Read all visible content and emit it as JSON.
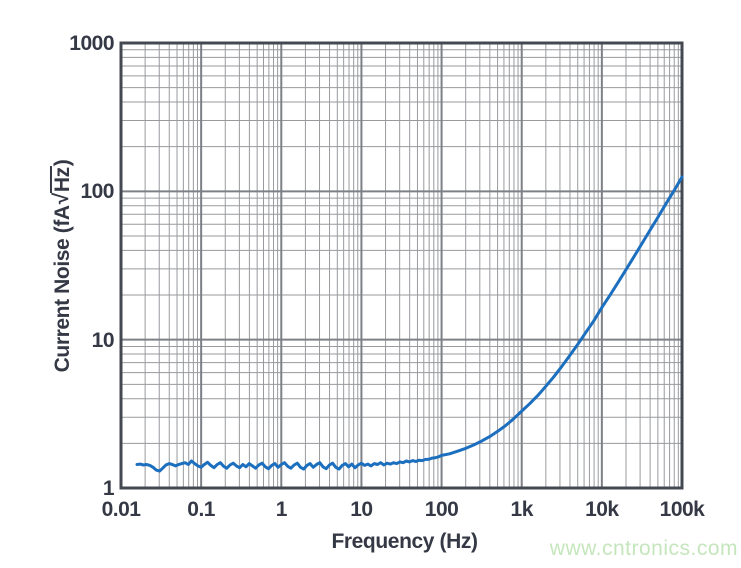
{
  "colors": {
    "text": "#343945",
    "plot_border": "#434851",
    "grid_major": "#7d8086",
    "grid_minor": "#989a9e",
    "series_blue": "#1c6fbe",
    "watermark_green": "#c5e6bc",
    "background": "#ffffff"
  },
  "watermark": {
    "text": "www.cntronics.com"
  },
  "chart_data": {
    "type": "line",
    "title": "",
    "xlabel": "Frequency (Hz)",
    "ylabel": "Current Noise (fA√Hz)",
    "ylabel_parts": {
      "prefix": "Current Noise (fA",
      "radical": "√",
      "radicand": "Hz",
      "suffix": ")"
    },
    "x_scale": "log",
    "y_scale": "log",
    "xlim": [
      0.01,
      100000
    ],
    "ylim": [
      1,
      1000
    ],
    "grid": "log major+minor, both axes",
    "legend": "none",
    "x_ticks": [
      {
        "log": -2,
        "label": "0.01"
      },
      {
        "log": -1,
        "label": "0.1"
      },
      {
        "log": 0,
        "label": "1"
      },
      {
        "log": 1,
        "label": "10"
      },
      {
        "log": 2,
        "label": "100"
      },
      {
        "log": 3,
        "label": "1k"
      },
      {
        "log": 4,
        "label": "10k"
      },
      {
        "log": 5,
        "label": "100k"
      }
    ],
    "y_ticks": [
      {
        "log": 0,
        "label": "1"
      },
      {
        "log": 1,
        "label": "10"
      },
      {
        "log": 2,
        "label": "100"
      },
      {
        "log": 3,
        "label": "1000"
      }
    ],
    "series": [
      {
        "name": "current-noise-density",
        "color_key": "series_blue",
        "stroke_width": 3,
        "points_log_hz_vs_fa": [
          [
            -1.8,
            1.44
          ],
          [
            -1.76,
            1.45
          ],
          [
            -1.72,
            1.43
          ],
          [
            -1.68,
            1.44
          ],
          [
            -1.64,
            1.42
          ],
          [
            -1.6,
            1.38
          ],
          [
            -1.56,
            1.32
          ],
          [
            -1.52,
            1.3
          ],
          [
            -1.48,
            1.36
          ],
          [
            -1.44,
            1.43
          ],
          [
            -1.4,
            1.46
          ],
          [
            -1.36,
            1.44
          ],
          [
            -1.32,
            1.41
          ],
          [
            -1.28,
            1.44
          ],
          [
            -1.24,
            1.46
          ],
          [
            -1.2,
            1.48
          ],
          [
            -1.16,
            1.44
          ],
          [
            -1.12,
            1.52
          ],
          [
            -1.08,
            1.46
          ],
          [
            -1.04,
            1.41
          ],
          [
            -1.0,
            1.38
          ],
          [
            -0.96,
            1.44
          ],
          [
            -0.92,
            1.49
          ],
          [
            -0.88,
            1.42
          ],
          [
            -0.84,
            1.37
          ],
          [
            -0.8,
            1.44
          ],
          [
            -0.76,
            1.48
          ],
          [
            -0.72,
            1.4
          ],
          [
            -0.68,
            1.36
          ],
          [
            -0.64,
            1.43
          ],
          [
            -0.6,
            1.47
          ],
          [
            -0.56,
            1.41
          ],
          [
            -0.52,
            1.37
          ],
          [
            -0.48,
            1.44
          ],
          [
            -0.44,
            1.39
          ],
          [
            -0.4,
            1.46
          ],
          [
            -0.36,
            1.41
          ],
          [
            -0.32,
            1.36
          ],
          [
            -0.28,
            1.43
          ],
          [
            -0.24,
            1.47
          ],
          [
            -0.2,
            1.39
          ],
          [
            -0.16,
            1.35
          ],
          [
            -0.12,
            1.42
          ],
          [
            -0.08,
            1.46
          ],
          [
            -0.04,
            1.38
          ],
          [
            0.0,
            1.44
          ],
          [
            0.04,
            1.48
          ],
          [
            0.08,
            1.4
          ],
          [
            0.12,
            1.36
          ],
          [
            0.16,
            1.43
          ],
          [
            0.2,
            1.47
          ],
          [
            0.24,
            1.38
          ],
          [
            0.28,
            1.34
          ],
          [
            0.32,
            1.42
          ],
          [
            0.36,
            1.46
          ],
          [
            0.4,
            1.38
          ],
          [
            0.44,
            1.44
          ],
          [
            0.48,
            1.48
          ],
          [
            0.52,
            1.39
          ],
          [
            0.56,
            1.35
          ],
          [
            0.6,
            1.43
          ],
          [
            0.64,
            1.47
          ],
          [
            0.68,
            1.38
          ],
          [
            0.72,
            1.34
          ],
          [
            0.76,
            1.42
          ],
          [
            0.8,
            1.46
          ],
          [
            0.84,
            1.39
          ],
          [
            0.88,
            1.45
          ],
          [
            0.92,
            1.37
          ],
          [
            0.96,
            1.43
          ],
          [
            1.0,
            1.47
          ],
          [
            1.04,
            1.42
          ],
          [
            1.08,
            1.45
          ],
          [
            1.12,
            1.41
          ],
          [
            1.16,
            1.46
          ],
          [
            1.2,
            1.44
          ],
          [
            1.24,
            1.48
          ],
          [
            1.28,
            1.43
          ],
          [
            1.32,
            1.47
          ],
          [
            1.36,
            1.45
          ],
          [
            1.4,
            1.48
          ],
          [
            1.44,
            1.46
          ],
          [
            1.48,
            1.5
          ],
          [
            1.52,
            1.48
          ],
          [
            1.56,
            1.52
          ],
          [
            1.6,
            1.5
          ],
          [
            1.64,
            1.53
          ],
          [
            1.68,
            1.51
          ],
          [
            1.72,
            1.54
          ],
          [
            1.76,
            1.53
          ],
          [
            1.8,
            1.56
          ],
          [
            1.84,
            1.56
          ],
          [
            1.88,
            1.59
          ],
          [
            1.92,
            1.6
          ],
          [
            1.96,
            1.62
          ],
          [
            2.0,
            1.66
          ],
          [
            2.1,
            1.7
          ],
          [
            2.2,
            1.77
          ],
          [
            2.3,
            1.85
          ],
          [
            2.4,
            1.95
          ],
          [
            2.5,
            2.07
          ],
          [
            2.6,
            2.22
          ],
          [
            2.7,
            2.41
          ],
          [
            2.8,
            2.64
          ],
          [
            2.9,
            2.93
          ],
          [
            3.0,
            3.3
          ],
          [
            3.1,
            3.7
          ],
          [
            3.2,
            4.2
          ],
          [
            3.3,
            4.85
          ],
          [
            3.4,
            5.62
          ],
          [
            3.5,
            6.6
          ],
          [
            3.6,
            7.82
          ],
          [
            3.7,
            9.3
          ],
          [
            3.8,
            11.2
          ],
          [
            3.9,
            13.4
          ],
          [
            4.0,
            16.5
          ],
          [
            4.1,
            19.9
          ],
          [
            4.2,
            24.2
          ],
          [
            4.3,
            29.6
          ],
          [
            4.4,
            36.2
          ],
          [
            4.5,
            44.4
          ],
          [
            4.6,
            54.5
          ],
          [
            4.7,
            67.0
          ],
          [
            4.8,
            82.5
          ],
          [
            4.9,
            101
          ],
          [
            5.0,
            125
          ]
        ]
      }
    ]
  }
}
